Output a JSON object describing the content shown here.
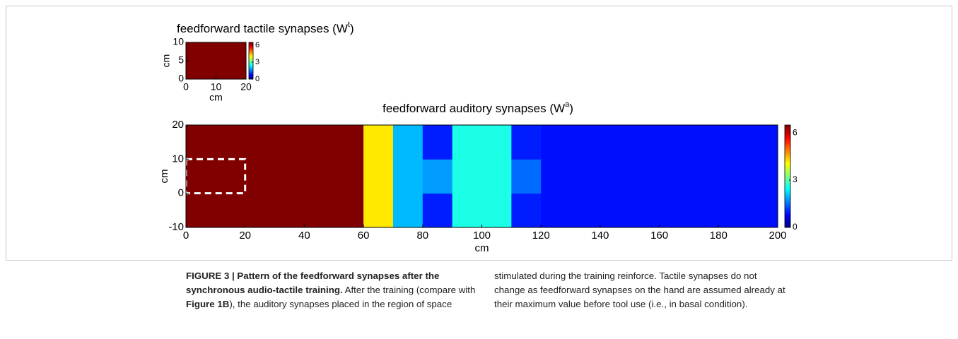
{
  "chart_data": [
    {
      "type": "heatmap",
      "title": "feedforward tactile synapses (W",
      "title_sup": "t",
      "title_end": ")",
      "xlabel": "cm",
      "ylabel": "cm",
      "xlim": [
        0,
        20
      ],
      "ylim": [
        0,
        10
      ],
      "xticks": [
        0,
        10,
        20
      ],
      "yticks": [
        0,
        5,
        10
      ],
      "z": [
        [
          6.5
        ]
      ],
      "colormap": "jet",
      "clim": [
        0,
        6.5
      ],
      "cticks": [
        0,
        3,
        6
      ]
    },
    {
      "type": "heatmap",
      "title": "feedforward auditory synapses (W",
      "title_sup": "a",
      "title_end": ")",
      "xlabel": "cm",
      "ylabel": "cm",
      "xlim": [
        0,
        200
      ],
      "ylim": [
        -10,
        20
      ],
      "xticks": [
        0,
        20,
        40,
        60,
        80,
        100,
        120,
        140,
        160,
        180,
        200
      ],
      "yticks": [
        -10,
        0,
        10,
        20
      ],
      "z": [
        [
          6.5,
          6.5,
          6.5,
          6.5,
          6.5,
          6.5,
          4.2,
          2.0,
          1.0,
          2.6,
          2.6,
          1.0,
          0.9,
          0.9,
          0.9,
          0.9,
          0.9,
          0.9,
          0.9,
          0.9
        ],
        [
          6.5,
          6.5,
          6.5,
          6.5,
          6.5,
          6.5,
          4.2,
          2.0,
          1.8,
          2.6,
          2.6,
          1.5,
          0.9,
          0.9,
          0.9,
          0.9,
          0.9,
          0.9,
          0.9,
          0.9
        ],
        [
          6.5,
          6.5,
          6.5,
          6.5,
          6.5,
          6.5,
          4.2,
          2.0,
          1.0,
          2.6,
          2.6,
          1.0,
          0.9,
          0.9,
          0.9,
          0.9,
          0.9,
          0.9,
          0.9,
          0.9
        ]
      ],
      "highlight_box": {
        "x": [
          0,
          20
        ],
        "y": [
          0,
          10
        ],
        "color": "#ffffff"
      },
      "colormap": "jet",
      "clim": [
        0,
        6.5
      ],
      "cticks": [
        0,
        3,
        6
      ]
    }
  ],
  "caption": {
    "label": "FIGURE 3 | Pattern of the feedforward synapses after the synchronous audio-tactile training.",
    "text_1": "After the training (compare with",
    "ref": "Figure 1B",
    "text_2": "), the auditory synapses placed in the region of space stimulated during the training reinforce. Tactile synapses do not change as feedforward synapses on the hand are assumed already at their maximum value before tool use (i.e., in basal condition)."
  }
}
